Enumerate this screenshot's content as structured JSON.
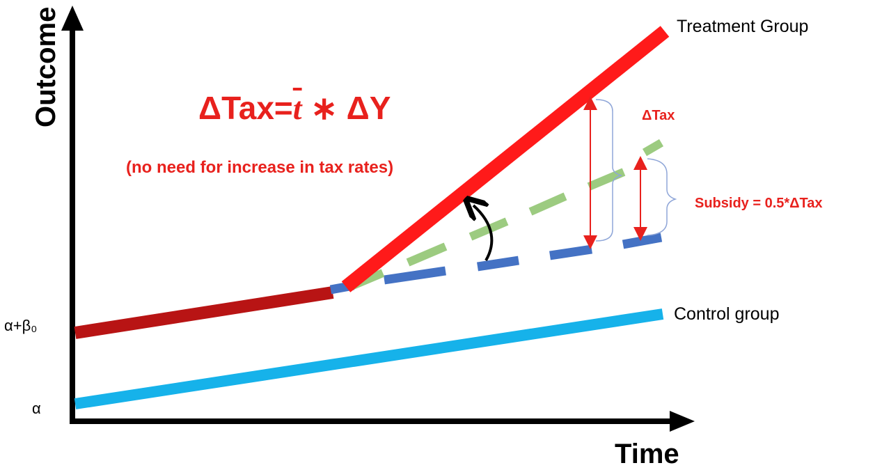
{
  "axes": {
    "y_title": "Outcome",
    "x_title": "Time",
    "y_ticks": [
      "α+β₀",
      "α"
    ]
  },
  "series": {
    "treatment": "Treatment Group",
    "control": "Control group"
  },
  "formula": {
    "delta_tax_prefix": "ΔTax=",
    "t_bar": "t",
    "rest": " ∗ ΔY"
  },
  "note": "(no need for increase in tax rates)",
  "annotations": {
    "delta_tax": "ΔTax",
    "subsidy": "Subsidy = 0.5*ΔTax"
  },
  "colors": {
    "treatment_pre": "#b81414",
    "treatment_post": "#ff1a1a",
    "control": "#16b2ea",
    "counterfactual_dashed": "#4472c4",
    "subsidy_dashed": "#9ccb80",
    "annotation_red": "#e8211d",
    "brace": "#8fa6d8"
  }
}
